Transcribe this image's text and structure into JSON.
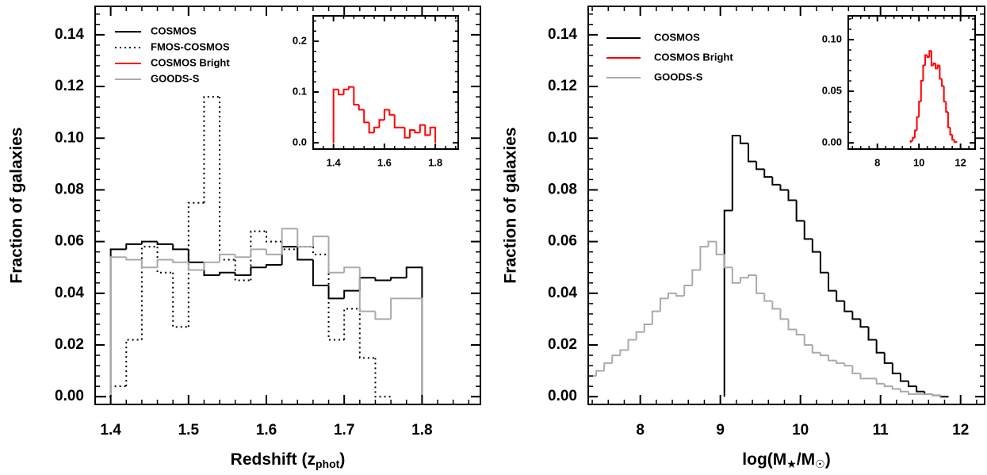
{
  "chart_data": [
    {
      "type": "histogram",
      "x_label": [
        {
          "text": "Redshift (z"
        },
        {
          "text": "phot",
          "sub": true
        },
        {
          "text": ")"
        }
      ],
      "y_label": "Fraction of galaxies",
      "xlim": [
        1.38,
        1.875
      ],
      "ylim": [
        -0.003,
        0.151
      ],
      "xticks": [
        1.4,
        1.5,
        1.6,
        1.7,
        1.8
      ],
      "yticks": [
        {
          "value": 0,
          "label": "0.00"
        },
        {
          "value": 0.02,
          "label": "0.02"
        },
        {
          "value": 0.04,
          "label": "0.04"
        },
        {
          "value": 0.06,
          "label": "0.06"
        },
        {
          "value": 0.08,
          "label": "0.08"
        },
        {
          "value": 0.1,
          "label": "0.10"
        },
        {
          "value": 0.12,
          "label": "0.12"
        },
        {
          "value": 0.14,
          "label": "0.14"
        }
      ],
      "series": [
        {
          "name": "COSMOS",
          "color": "#000000",
          "linestyle": "solid",
          "bins": [
            1.4,
            1.42,
            1.44,
            1.46,
            1.48,
            1.5,
            1.52,
            1.54,
            1.56,
            1.58,
            1.6,
            1.62,
            1.64,
            1.66,
            1.68,
            1.7,
            1.72,
            1.74,
            1.76,
            1.78,
            1.8
          ],
          "values": [
            0.057,
            0.059,
            0.06,
            0.059,
            0.057,
            0.052,
            0.047,
            0.048,
            0.047,
            0.05,
            0.051,
            0.058,
            0.053,
            0.043,
            0.038,
            0.041,
            0.046,
            0.045,
            0.046,
            0.05
          ]
        },
        {
          "name": "FMOS-COSMOS",
          "color": "#000000",
          "linestyle": "dotted",
          "bins": [
            1.38,
            1.4,
            1.42,
            1.44,
            1.46,
            1.48,
            1.5,
            1.52,
            1.54,
            1.56,
            1.58,
            1.6,
            1.62,
            1.64,
            1.66,
            1.68,
            1.7,
            1.72,
            1.74,
            1.76
          ],
          "values": [
            0.0,
            0.004,
            0.022,
            0.058,
            0.048,
            0.027,
            0.075,
            0.116,
            0.053,
            0.045,
            0.064,
            0.06,
            0.057,
            0.058,
            0.055,
            0.022,
            0.034,
            0.015,
            0.0
          ]
        },
        {
          "name": "GOODS-S",
          "color": "#aaaaaa",
          "linestyle": "solid",
          "bins": [
            1.4,
            1.42,
            1.44,
            1.46,
            1.48,
            1.5,
            1.52,
            1.54,
            1.56,
            1.58,
            1.6,
            1.62,
            1.64,
            1.66,
            1.68,
            1.7,
            1.72,
            1.74,
            1.76,
            1.78,
            1.8
          ],
          "values": [
            0.054,
            0.053,
            0.05,
            0.053,
            0.052,
            0.049,
            0.052,
            0.055,
            0.054,
            0.057,
            0.055,
            0.065,
            0.058,
            0.062,
            0.048,
            0.05,
            0.033,
            0.03,
            0.038,
            0.038
          ]
        }
      ]
    },
    {
      "type": "histogram",
      "xlim": [
        1.32,
        1.89
      ],
      "ylim": [
        -0.0125,
        0.25
      ],
      "xticks": [
        1.4,
        1.6,
        1.8
      ],
      "yticks": [
        {
          "value": 0,
          "label": "0.0"
        },
        {
          "value": 0.1,
          "label": "0.1"
        },
        {
          "value": 0.2,
          "label": "0.2"
        }
      ],
      "series": [
        {
          "name": "COSMOS Bright",
          "color": "#ff0000",
          "linestyle": "solid",
          "bins": [
            1.4,
            1.42,
            1.44,
            1.46,
            1.48,
            1.5,
            1.52,
            1.54,
            1.56,
            1.58,
            1.6,
            1.62,
            1.64,
            1.66,
            1.68,
            1.7,
            1.72,
            1.74,
            1.76,
            1.78,
            1.8
          ],
          "values": [
            0.105,
            0.095,
            0.105,
            0.11,
            0.075,
            0.065,
            0.04,
            0.02,
            0.03,
            0.045,
            0.065,
            0.055,
            0.03,
            0.03,
            0.01,
            0.025,
            0.02,
            0.035,
            0.015,
            0.03
          ]
        }
      ]
    },
    {
      "type": "histogram",
      "x_label": [
        {
          "text": "log(M"
        },
        {
          "text": "★",
          "sub": true
        },
        {
          "text": "/M"
        },
        {
          "text": "☉",
          "sub": true
        },
        {
          "text": ")"
        }
      ],
      "y_label": "Fraction of galaxies",
      "xlim": [
        7.35,
        12.3
      ],
      "ylim": [
        -0.003,
        0.151
      ],
      "xticks": [
        8,
        9,
        10,
        11,
        12
      ],
      "yticks": [
        {
          "value": 0,
          "label": "0.00"
        },
        {
          "value": 0.02,
          "label": "0.02"
        },
        {
          "value": 0.04,
          "label": "0.04"
        },
        {
          "value": 0.06,
          "label": "0.06"
        },
        {
          "value": 0.08,
          "label": "0.08"
        },
        {
          "value": 0.1,
          "label": "0.10"
        },
        {
          "value": 0.12,
          "label": "0.12"
        },
        {
          "value": 0.14,
          "label": "0.14"
        }
      ],
      "series": [
        {
          "name": "COSMOS",
          "color": "#000000",
          "linestyle": "solid",
          "bins": [
            9.05,
            9.15,
            9.25,
            9.35,
            9.45,
            9.55,
            9.65,
            9.75,
            9.85,
            9.95,
            10.05,
            10.15,
            10.25,
            10.35,
            10.45,
            10.55,
            10.65,
            10.75,
            10.85,
            10.95,
            11.05,
            11.15,
            11.25,
            11.35,
            11.45,
            11.55,
            11.65,
            11.75,
            11.85
          ],
          "values": [
            0.072,
            0.101,
            0.098,
            0.091,
            0.088,
            0.085,
            0.082,
            0.08,
            0.076,
            0.068,
            0.061,
            0.056,
            0.048,
            0.041,
            0.037,
            0.033,
            0.03,
            0.027,
            0.022,
            0.017,
            0.013,
            0.009,
            0.006,
            0.004,
            0.002,
            0.001,
            0.0005,
            0.0
          ]
        },
        {
          "name": "GOODS-S",
          "color": "#aaaaaa",
          "linestyle": "solid",
          "bins": [
            7.35,
            7.45,
            7.55,
            7.65,
            7.75,
            7.85,
            7.95,
            8.05,
            8.15,
            8.25,
            8.35,
            8.45,
            8.55,
            8.65,
            8.75,
            8.85,
            8.95,
            9.05,
            9.15,
            9.25,
            9.35,
            9.45,
            9.55,
            9.65,
            9.75,
            9.85,
            9.95,
            10.05,
            10.15,
            10.25,
            10.35,
            10.45,
            10.55,
            10.65,
            10.75,
            10.85,
            10.95,
            11.05,
            11.15,
            11.25,
            11.35,
            11.45,
            11.55,
            11.65,
            11.75
          ],
          "values": [
            0.008,
            0.01,
            0.013,
            0.016,
            0.018,
            0.022,
            0.025,
            0.028,
            0.033,
            0.038,
            0.04,
            0.039,
            0.043,
            0.049,
            0.058,
            0.06,
            0.055,
            0.05,
            0.044,
            0.046,
            0.047,
            0.04,
            0.037,
            0.034,
            0.03,
            0.026,
            0.024,
            0.02,
            0.017,
            0.016,
            0.014,
            0.013,
            0.012,
            0.009,
            0.007,
            0.007,
            0.005,
            0.004,
            0.003,
            0.002,
            0.001,
            0.001,
            0.001,
            0.0005
          ]
        }
      ]
    },
    {
      "type": "histogram",
      "xlim": [
        6.6,
        12.7
      ],
      "ylim": [
        -0.006,
        0.123
      ],
      "xticks": [
        8,
        10,
        12
      ],
      "yticks": [
        {
          "value": 0,
          "label": "0.00"
        },
        {
          "value": 0.05,
          "label": "0.05"
        },
        {
          "value": 0.1,
          "label": "0.10"
        }
      ],
      "series": [
        {
          "name": "COSMOS Bright",
          "color": "#ff0000",
          "linestyle": "solid",
          "bins": [
            9.6,
            9.7,
            9.8,
            9.9,
            10.0,
            10.1,
            10.2,
            10.3,
            10.4,
            10.5,
            10.6,
            10.7,
            10.8,
            10.9,
            11.0,
            11.1,
            11.2,
            11.3,
            11.4,
            11.5,
            11.6,
            11.7,
            11.8
          ],
          "values": [
            0.002,
            0.005,
            0.012,
            0.025,
            0.04,
            0.06,
            0.075,
            0.085,
            0.083,
            0.089,
            0.075,
            0.077,
            0.072,
            0.075,
            0.062,
            0.055,
            0.04,
            0.03,
            0.015,
            0.008,
            0.003,
            0.001
          ]
        }
      ]
    }
  ]
}
